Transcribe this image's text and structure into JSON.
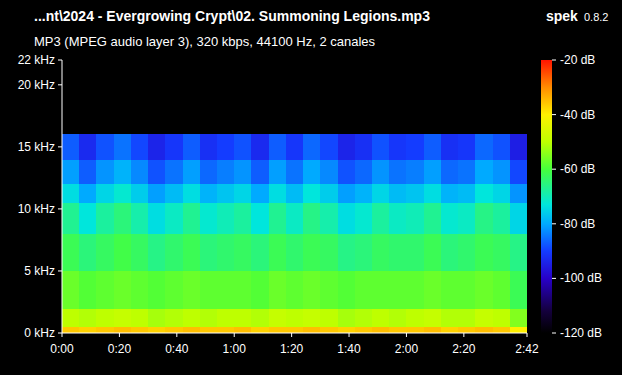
{
  "chart_data": {
    "type": "heatmap",
    "title": "...nt\\2024 - Evergrowing Crypt\\02. Summoning Legions.mp3",
    "subtitle": "MP3 (MPEG audio layer 3), 320 kbps, 44100 Hz, 2 canales",
    "annotations": [
      "spek",
      "0.8.2"
    ],
    "xlim": [
      0,
      162
    ],
    "ylim": [
      0,
      22
    ],
    "xticks": [
      {
        "value": 0,
        "label": "0:00"
      },
      {
        "value": 20,
        "label": "0:20"
      },
      {
        "value": 40,
        "label": "0:40"
      },
      {
        "value": 60,
        "label": "1:00"
      },
      {
        "value": 80,
        "label": "1:20"
      },
      {
        "value": 100,
        "label": "1:40"
      },
      {
        "value": 120,
        "label": "2:00"
      },
      {
        "value": 140,
        "label": "2:20"
      },
      {
        "value": 162,
        "label": "2:42"
      }
    ],
    "yticks": [
      {
        "value": 0,
        "label": "0 kHz"
      },
      {
        "value": 5,
        "label": "5 kHz"
      },
      {
        "value": 10,
        "label": "10 kHz"
      },
      {
        "value": 15,
        "label": "15 kHz"
      },
      {
        "value": 20,
        "label": "20 kHz"
      },
      {
        "value": 22,
        "label": "22 kHz"
      }
    ],
    "x_bins": [
      0,
      6,
      12,
      18,
      24,
      30,
      36,
      42,
      48,
      54,
      60,
      66,
      72,
      78,
      84,
      90,
      96,
      102,
      108,
      114,
      120,
      126,
      132,
      138,
      144,
      150,
      156,
      162
    ],
    "y_bins": [
      0,
      0.5,
      2,
      5,
      8,
      10.5,
      12,
      14,
      16
    ],
    "cells": [
      [
        -36,
        -37,
        -36,
        -35,
        -36,
        -37,
        -36,
        -35,
        -36,
        -36,
        -35,
        -37,
        -36,
        -36,
        -35,
        -36,
        -37,
        -36,
        -35,
        -36,
        -36,
        -35,
        -37,
        -36,
        -35,
        -36,
        -40
      ],
      [
        -50,
        -51,
        -50,
        -49,
        -50,
        -52,
        -51,
        -50,
        -51,
        -50,
        -50,
        -51,
        -49,
        -50,
        -49,
        -50,
        -52,
        -51,
        -50,
        -51,
        -50,
        -49,
        -51,
        -51,
        -49,
        -50,
        -55
      ],
      [
        -57,
        -59,
        -58,
        -57,
        -58,
        -59,
        -58,
        -57,
        -58,
        -58,
        -58,
        -59,
        -57,
        -58,
        -57,
        -58,
        -59,
        -58,
        -58,
        -58,
        -58,
        -57,
        -58,
        -58,
        -57,
        -58,
        -62
      ],
      [
        -62,
        -65,
        -63,
        -61,
        -63,
        -66,
        -64,
        -62,
        -65,
        -64,
        -63,
        -65,
        -62,
        -64,
        -62,
        -63,
        -66,
        -65,
        -63,
        -64,
        -64,
        -62,
        -65,
        -64,
        -62,
        -63,
        -66
      ],
      [
        -67,
        -73,
        -68,
        -65,
        -69,
        -74,
        -71,
        -67,
        -72,
        -70,
        -68,
        -73,
        -67,
        -71,
        -66,
        -69,
        -74,
        -72,
        -68,
        -71,
        -70,
        -67,
        -72,
        -71,
        -66,
        -68,
        -75
      ],
      [
        -74,
        -80,
        -75,
        -72,
        -76,
        -81,
        -78,
        -74,
        -79,
        -77,
        -75,
        -80,
        -74,
        -78,
        -73,
        -76,
        -81,
        -79,
        -75,
        -78,
        -77,
        -74,
        -79,
        -78,
        -73,
        -75,
        -82
      ],
      [
        -81,
        -87,
        -82,
        -79,
        -83,
        -88,
        -85,
        -81,
        -86,
        -84,
        -82,
        -87,
        -81,
        -85,
        -80,
        -83,
        -88,
        -86,
        -82,
        -85,
        -84,
        -81,
        -86,
        -85,
        -80,
        -82,
        -89
      ],
      [
        -87,
        -93,
        -88,
        -85,
        -89,
        -94,
        -91,
        -87,
        -92,
        -90,
        -88,
        -93,
        -87,
        -91,
        -86,
        -89,
        -94,
        -92,
        -88,
        -91,
        -90,
        -87,
        -92,
        -91,
        -86,
        -88,
        -95
      ]
    ],
    "color_range": [
      -120,
      -20
    ],
    "color_ticks": [
      {
        "value": -20,
        "label": "-20 dB"
      },
      {
        "value": -40,
        "label": "-40 dB"
      },
      {
        "value": -60,
        "label": "-60 dB"
      },
      {
        "value": -80,
        "label": "-80 dB"
      },
      {
        "value": -100,
        "label": "-100 dB"
      },
      {
        "value": -120,
        "label": "-120 dB"
      }
    ]
  }
}
